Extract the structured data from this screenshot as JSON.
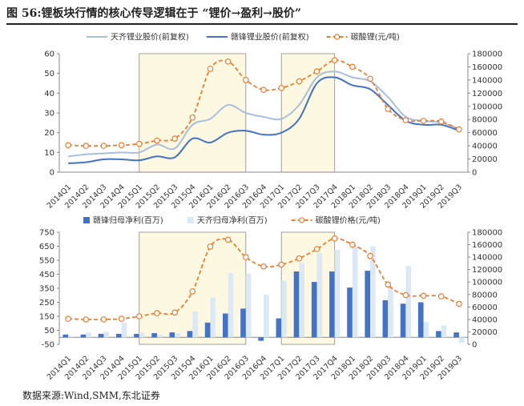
{
  "figure": {
    "title": "图 56:锂板块行情的核心传导逻辑在于 “锂价→盈利→股价”",
    "source": "数据来源:Wind,SMM,东北证券"
  },
  "chart_data": [
    {
      "type": "line",
      "title": "",
      "categories": [
        "2014Q1",
        "2014Q2",
        "2014Q3",
        "2014Q4",
        "2015Q1",
        "2015Q2",
        "2015Q3",
        "2015Q4",
        "2016Q1",
        "2016Q2",
        "2016Q3",
        "2016Q4",
        "2017Q1",
        "2017Q2",
        "2017Q3",
        "2017Q4",
        "2018Q1",
        "2018Q2",
        "2018Q3",
        "2018Q4",
        "2019Q1",
        "2019Q2",
        "2019Q3"
      ],
      "series": [
        {
          "name": "天齐锂业股价(前复权)",
          "axis": "left",
          "color": "#a9bfdc",
          "values": [
            8,
            9,
            9.5,
            10,
            10,
            14,
            12,
            24,
            27,
            34,
            30,
            28,
            27,
            34,
            48,
            51,
            48,
            46,
            38,
            28,
            26,
            25,
            22
          ]
        },
        {
          "name": "赣锋锂业股价(前复权)",
          "axis": "left",
          "color": "#4472c4",
          "values": [
            4.5,
            5,
            6.5,
            6.5,
            6,
            8,
            7.5,
            17,
            15,
            20,
            21,
            19,
            20,
            27,
            45,
            48,
            44,
            42,
            34,
            26,
            24,
            24,
            21
          ]
        },
        {
          "name": "碳酸锂(元/吨)",
          "axis": "right",
          "color": "#ed7d31",
          "dashed": true,
          "values": [
            41000,
            40000,
            40000,
            41000,
            43000,
            48000,
            51000,
            83000,
            157000,
            168000,
            140000,
            125000,
            128000,
            138000,
            153000,
            170000,
            160000,
            142000,
            96000,
            79000,
            78000,
            77000,
            65000
          ]
        }
      ],
      "y_left": {
        "range": [
          0,
          60
        ],
        "ticks": [
          0,
          10,
          20,
          30,
          40,
          50,
          60
        ]
      },
      "y_right": {
        "range": [
          0,
          180000
        ],
        "ticks": [
          0,
          20000,
          40000,
          60000,
          80000,
          100000,
          120000,
          140000,
          160000,
          180000
        ]
      },
      "shaded_periods": [
        [
          "2015Q1",
          "2016Q3"
        ],
        [
          "2017Q1",
          "2017Q4"
        ]
      ],
      "legend_position": "top",
      "grid": false
    },
    {
      "type": "bar",
      "title": "",
      "categories": [
        "2014Q1",
        "2014Q2",
        "2014Q3",
        "2014Q4",
        "2015Q1",
        "2015Q2",
        "2015Q3",
        "2015Q4",
        "2016Q1",
        "2016Q2",
        "2016Q3",
        "2016Q4",
        "2017Q1",
        "2017Q2",
        "2017Q3",
        "2017Q4",
        "2018Q1",
        "2018Q2",
        "2018Q3",
        "2018Q4",
        "2019Q1",
        "2019Q2",
        "2019Q3"
      ],
      "series": [
        {
          "name": "赣锋归母净利(百万)",
          "axis": "left",
          "color": "#4472c4",
          "values": [
            20,
            20,
            25,
            25,
            25,
            30,
            35,
            45,
            105,
            170,
            205,
            -25,
            135,
            470,
            395,
            470,
            355,
            475,
            265,
            240,
            250,
            45,
            35
          ]
        },
        {
          "name": "天齐归母净利(百万)",
          "axis": "left",
          "color": "#dde8f5",
          "values": [
            10,
            35,
            40,
            105,
            35,
            20,
            30,
            185,
            285,
            460,
            455,
            305,
            405,
            530,
            600,
            625,
            650,
            650,
            355,
            510,
            110,
            85,
            -40
          ]
        },
        {
          "name": "碳酸锂价格(元/吨)",
          "axis": "right",
          "color": "#ed7d31",
          "dashed": true,
          "type": "line",
          "values": [
            41000,
            40000,
            40000,
            41000,
            45000,
            50000,
            51000,
            85000,
            157000,
            168000,
            140000,
            125000,
            128000,
            138000,
            153000,
            170000,
            160000,
            142000,
            96000,
            79000,
            78000,
            77000,
            65000
          ]
        }
      ],
      "y_left": {
        "range": [
          -50,
          750
        ],
        "ticks": [
          -50,
          50,
          150,
          250,
          350,
          450,
          550,
          650,
          750
        ]
      },
      "y_right": {
        "range": [
          0,
          180000
        ],
        "ticks": [
          0,
          20000,
          40000,
          60000,
          80000,
          100000,
          120000,
          140000,
          160000,
          180000
        ]
      },
      "shaded_periods": [
        [
          "2015Q1",
          "2016Q3"
        ],
        [
          "2017Q1",
          "2017Q4"
        ]
      ],
      "legend_position": "top",
      "grid": false
    }
  ]
}
